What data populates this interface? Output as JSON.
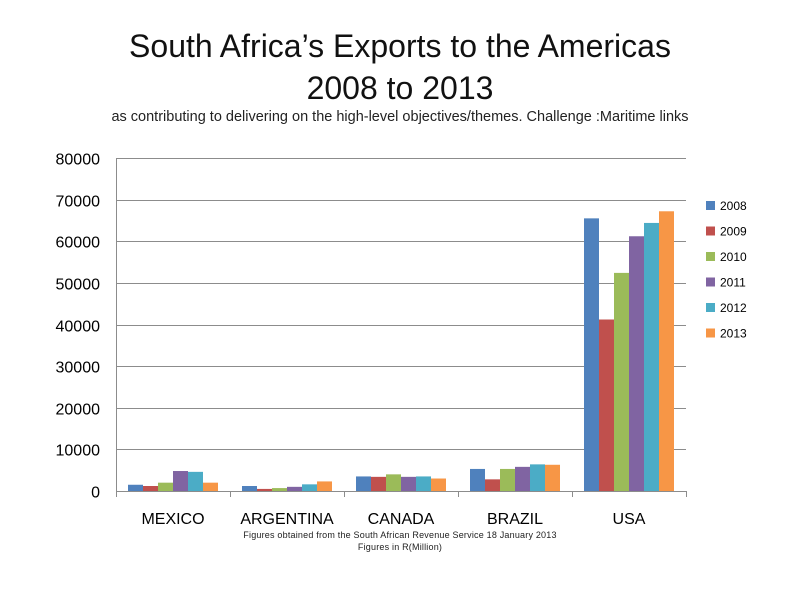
{
  "title_lines": [
    "South Africa’s Exports to the Americas",
    "2008 to 2013"
  ],
  "subtitle": "as contributing to delivering on the high-level objectives/themes. Challenge :Maritime links",
  "footnotes": [
    "Figures obtained from the South African Revenue Service 18 January 2013",
    "Figures in R(Million)"
  ],
  "chart_data": {
    "type": "bar",
    "categories": [
      "MEXICO",
      "ARGENTINA",
      "CANADA",
      "BRAZIL",
      "USA"
    ],
    "ylim": [
      0,
      80000
    ],
    "yticks": [
      0,
      10000,
      20000,
      30000,
      40000,
      50000,
      60000,
      70000,
      80000
    ],
    "grid": true,
    "legend_position": "right",
    "series": [
      {
        "name": "2008",
        "color": "#4F81BD",
        "values": [
          1500,
          1200,
          3500,
          5300,
          65500
        ]
      },
      {
        "name": "2009",
        "color": "#C0504D",
        "values": [
          1200,
          500,
          3400,
          2800,
          41200
        ]
      },
      {
        "name": "2010",
        "color": "#9BBB59",
        "values": [
          2000,
          700,
          4000,
          5300,
          52400
        ]
      },
      {
        "name": "2011",
        "color": "#8064A2",
        "values": [
          4800,
          1000,
          3400,
          5800,
          61200
        ]
      },
      {
        "name": "2012",
        "color": "#4BACC6",
        "values": [
          4600,
          1600,
          3500,
          6400,
          64400
        ]
      },
      {
        "name": "2013",
        "color": "#F79646",
        "values": [
          2000,
          2300,
          3000,
          6300,
          67200
        ]
      }
    ]
  }
}
